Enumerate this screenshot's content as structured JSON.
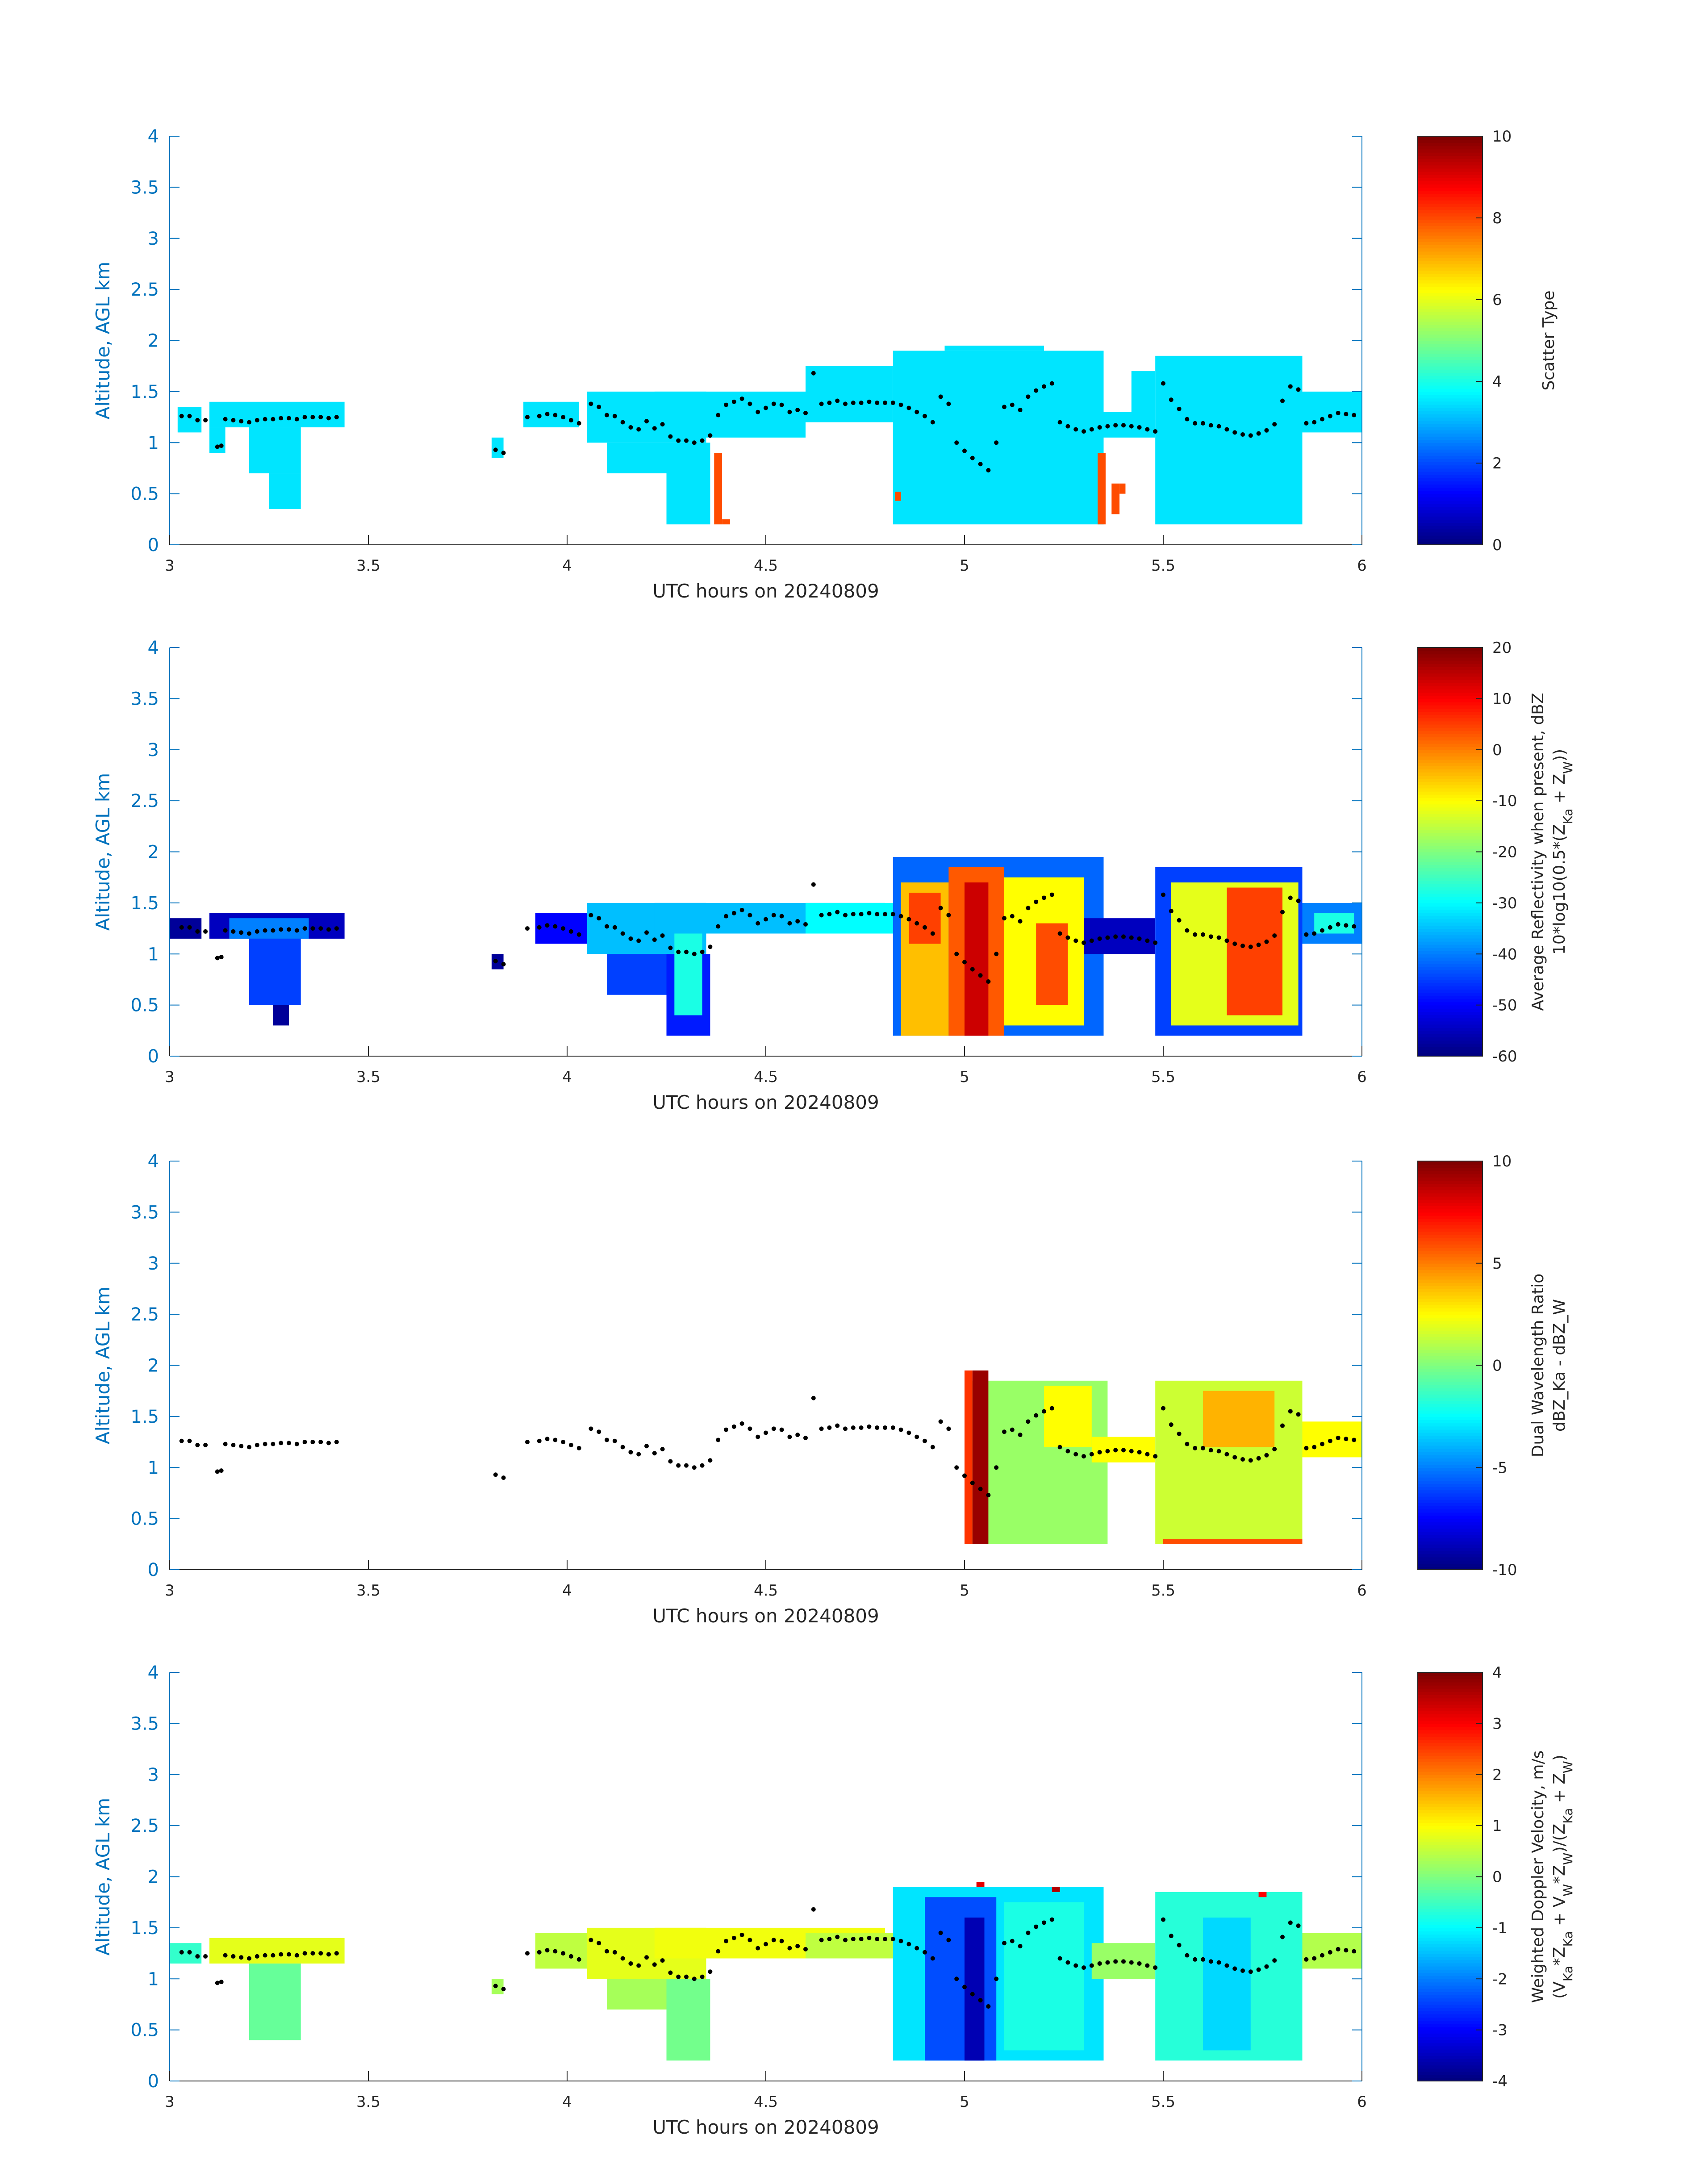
{
  "chart_data": [
    {
      "type": "heatmap",
      "title": "",
      "xlabel": "UTC hours on 20240809",
      "ylabel": "Altitude, AGL km",
      "xlim": [
        3,
        6
      ],
      "ylim": [
        0,
        4
      ],
      "xticks": [
        "3",
        "3.5",
        "4",
        "4.5",
        "5",
        "5.5",
        "6"
      ],
      "yticks": [
        "0",
        "0.5",
        "1",
        "1.5",
        "2",
        "2.5",
        "3",
        "3.5",
        "4"
      ],
      "colorbar": {
        "label_lines": [
          "Scatter Type"
        ],
        "range": [
          0,
          10
        ],
        "ticks": [
          "0",
          "2",
          "4",
          "6",
          "8",
          "10"
        ],
        "colormap": "jet"
      },
      "cells": [
        {
          "x0": 3.02,
          "x1": 3.08,
          "y0": 1.1,
          "y1": 1.35,
          "v": 3.5
        },
        {
          "x0": 3.1,
          "x1": 3.44,
          "y0": 1.15,
          "y1": 1.4,
          "v": 3.5
        },
        {
          "x0": 3.1,
          "x1": 3.14,
          "y0": 0.9,
          "y1": 1.15,
          "v": 3.5
        },
        {
          "x0": 3.2,
          "x1": 3.33,
          "y0": 0.7,
          "y1": 1.15,
          "v": 3.5
        },
        {
          "x0": 3.25,
          "x1": 3.33,
          "y0": 0.35,
          "y1": 0.7,
          "v": 3.5
        },
        {
          "x0": 3.81,
          "x1": 3.84,
          "y0": 0.85,
          "y1": 1.05,
          "v": 3.5
        },
        {
          "x0": 3.89,
          "x1": 4.03,
          "y0": 1.15,
          "y1": 1.4,
          "v": 3.5
        },
        {
          "x0": 4.05,
          "x1": 4.35,
          "y0": 1.0,
          "y1": 1.5,
          "v": 3.5
        },
        {
          "x0": 4.1,
          "x1": 4.25,
          "y0": 0.7,
          "y1": 1.0,
          "v": 3.5
        },
        {
          "x0": 4.25,
          "x1": 4.36,
          "y0": 0.2,
          "y1": 1.0,
          "v": 3.5
        },
        {
          "x0": 4.22,
          "x1": 4.8,
          "y0": 1.2,
          "y1": 1.5,
          "v": 3.5
        },
        {
          "x0": 4.35,
          "x1": 4.6,
          "y0": 1.05,
          "y1": 1.2,
          "v": 3.5
        },
        {
          "x0": 4.6,
          "x1": 4.82,
          "y0": 1.2,
          "y1": 1.75,
          "v": 3.5
        },
        {
          "x0": 4.82,
          "x1": 5.35,
          "y0": 0.2,
          "y1": 1.9,
          "v": 3.5
        },
        {
          "x0": 4.95,
          "x1": 5.2,
          "y0": 1.9,
          "y1": 1.95,
          "v": 3.5
        },
        {
          "x0": 5.35,
          "x1": 5.48,
          "y0": 1.05,
          "y1": 1.3,
          "v": 3.5
        },
        {
          "x0": 5.42,
          "x1": 5.48,
          "y0": 1.3,
          "y1": 1.7,
          "v": 3.5
        },
        {
          "x0": 5.48,
          "x1": 5.85,
          "y0": 0.2,
          "y1": 1.85,
          "v": 3.5
        },
        {
          "x0": 5.85,
          "x1": 6.0,
          "y0": 1.1,
          "y1": 1.5,
          "v": 3.5
        },
        {
          "x0": 4.37,
          "x1": 4.39,
          "y0": 0.2,
          "y1": 0.9,
          "v": 8.0
        },
        {
          "x0": 4.39,
          "x1": 4.41,
          "y0": 0.2,
          "y1": 0.25,
          "v": 8.0
        },
        {
          "x0": 4.825,
          "x1": 4.84,
          "y0": 0.43,
          "y1": 0.52,
          "v": 8.0
        },
        {
          "x0": 5.335,
          "x1": 5.355,
          "y0": 0.2,
          "y1": 0.9,
          "v": 8.0
        },
        {
          "x0": 5.37,
          "x1": 5.39,
          "y0": 0.3,
          "y1": 0.6,
          "v": 8.0
        },
        {
          "x0": 5.39,
          "x1": 5.405,
          "y0": 0.5,
          "y1": 0.6,
          "v": 8.0
        }
      ]
    },
    {
      "type": "heatmap",
      "title": "",
      "xlabel": "UTC hours on 20240809",
      "ylabel": "Altitude, AGL km",
      "xlim": [
        3,
        6
      ],
      "ylim": [
        0,
        4
      ],
      "xticks": [
        "3",
        "3.5",
        "4",
        "4.5",
        "5",
        "5.5",
        "6"
      ],
      "yticks": [
        "0",
        "0.5",
        "1",
        "1.5",
        "2",
        "2.5",
        "3",
        "3.5",
        "4"
      ],
      "colorbar": {
        "label_lines": [
          "Average Reflectivity when present, dBZ",
          "10*log10(0.5*(Z_Ka + Z_W))"
        ],
        "range": [
          -60,
          20
        ],
        "ticks": [
          "-60",
          "-50",
          "-40",
          "-30",
          "-20",
          "-10",
          "0",
          "10",
          "20"
        ],
        "colormap": "jet"
      },
      "cells": [
        {
          "x0": 3.0,
          "x1": 3.08,
          "y0": 1.15,
          "y1": 1.35,
          "v": -58
        },
        {
          "x0": 3.1,
          "x1": 3.44,
          "y0": 1.15,
          "y1": 1.4,
          "v": -55
        },
        {
          "x0": 3.15,
          "x1": 3.35,
          "y0": 1.15,
          "y1": 1.35,
          "v": -40
        },
        {
          "x0": 3.2,
          "x1": 3.33,
          "y0": 0.5,
          "y1": 1.15,
          "v": -45
        },
        {
          "x0": 3.26,
          "x1": 3.3,
          "y0": 0.3,
          "y1": 0.5,
          "v": -58
        },
        {
          "x0": 3.81,
          "x1": 3.84,
          "y0": 0.85,
          "y1": 1.0,
          "v": -58
        },
        {
          "x0": 3.92,
          "x1": 4.05,
          "y0": 1.1,
          "y1": 1.4,
          "v": -50
        },
        {
          "x0": 4.05,
          "x1": 4.35,
          "y0": 1.0,
          "y1": 1.5,
          "v": -35
        },
        {
          "x0": 4.1,
          "x1": 4.25,
          "y0": 0.6,
          "y1": 1.0,
          "v": -45
        },
        {
          "x0": 4.25,
          "x1": 4.36,
          "y0": 0.2,
          "y1": 1.0,
          "v": -48
        },
        {
          "x0": 4.27,
          "x1": 4.34,
          "y0": 0.4,
          "y1": 1.2,
          "v": -28
        },
        {
          "x0": 4.22,
          "x1": 4.8,
          "y0": 1.2,
          "y1": 1.5,
          "v": -35
        },
        {
          "x0": 4.6,
          "x1": 4.82,
          "y0": 1.2,
          "y1": 1.5,
          "v": -30
        },
        {
          "x0": 4.82,
          "x1": 5.35,
          "y0": 0.2,
          "y1": 1.95,
          "v": -42
        },
        {
          "x0": 4.84,
          "x1": 4.96,
          "y0": 0.2,
          "y1": 1.7,
          "v": -5
        },
        {
          "x0": 4.86,
          "x1": 4.94,
          "y0": 1.1,
          "y1": 1.6,
          "v": 5
        },
        {
          "x0": 4.96,
          "x1": 5.1,
          "y0": 0.2,
          "y1": 1.85,
          "v": 3
        },
        {
          "x0": 5.0,
          "x1": 5.06,
          "y0": 0.2,
          "y1": 1.7,
          "v": 14
        },
        {
          "x0": 5.1,
          "x1": 5.3,
          "y0": 0.3,
          "y1": 1.75,
          "v": -10
        },
        {
          "x0": 5.18,
          "x1": 5.26,
          "y0": 0.5,
          "y1": 1.3,
          "v": 4
        },
        {
          "x0": 5.3,
          "x1": 5.48,
          "y0": 1.0,
          "y1": 1.35,
          "v": -55
        },
        {
          "x0": 5.48,
          "x1": 5.85,
          "y0": 0.2,
          "y1": 1.85,
          "v": -45
        },
        {
          "x0": 5.52,
          "x1": 5.84,
          "y0": 0.3,
          "y1": 1.7,
          "v": -12
        },
        {
          "x0": 5.66,
          "x1": 5.8,
          "y0": 0.4,
          "y1": 1.65,
          "v": 5
        },
        {
          "x0": 5.85,
          "x1": 6.0,
          "y0": 1.1,
          "y1": 1.5,
          "v": -40
        },
        {
          "x0": 5.88,
          "x1": 5.98,
          "y0": 1.2,
          "y1": 1.4,
          "v": -28
        }
      ]
    },
    {
      "type": "heatmap",
      "title": "",
      "xlabel": "UTC hours on 20240809",
      "ylabel": "Altitude, AGL km",
      "xlim": [
        3,
        6
      ],
      "ylim": [
        0,
        4
      ],
      "xticks": [
        "3",
        "3.5",
        "4",
        "4.5",
        "5",
        "5.5",
        "6"
      ],
      "yticks": [
        "0",
        "0.5",
        "1",
        "1.5",
        "2",
        "2.5",
        "3",
        "3.5",
        "4"
      ],
      "colorbar": {
        "label_lines": [
          "Dual Wavelength Ratio",
          "dBZ_Ka - dBZ_W"
        ],
        "range": [
          -10,
          10
        ],
        "ticks": [
          "-10",
          "-5",
          "0",
          "5",
          "10"
        ],
        "colormap": "jet"
      },
      "cells": [
        {
          "x0": 5.0,
          "x1": 5.36,
          "y0": 0.25,
          "y1": 1.85,
          "v": 0.5
        },
        {
          "x0": 5.0,
          "x1": 5.02,
          "y0": 0.25,
          "y1": 1.95,
          "v": 6.5
        },
        {
          "x0": 5.02,
          "x1": 5.06,
          "y0": 0.25,
          "y1": 1.95,
          "v": 9.5
        },
        {
          "x0": 5.2,
          "x1": 5.32,
          "y0": 1.2,
          "y1": 1.8,
          "v": 2.5
        },
        {
          "x0": 5.32,
          "x1": 5.48,
          "y0": 1.05,
          "y1": 1.3,
          "v": 2.5
        },
        {
          "x0": 5.48,
          "x1": 5.85,
          "y0": 0.25,
          "y1": 1.85,
          "v": 1.5
        },
        {
          "x0": 5.6,
          "x1": 5.78,
          "y0": 1.2,
          "y1": 1.75,
          "v": 4.0
        },
        {
          "x0": 5.5,
          "x1": 5.85,
          "y0": 0.25,
          "y1": 0.3,
          "v": 6.0
        },
        {
          "x0": 5.85,
          "x1": 6.0,
          "y0": 1.1,
          "y1": 1.45,
          "v": 2.5
        }
      ]
    },
    {
      "type": "heatmap",
      "title": "",
      "xlabel": "UTC hours on 20240809",
      "ylabel": "Altitude, AGL km",
      "xlim": [
        3,
        6
      ],
      "ylim": [
        0,
        4
      ],
      "xticks": [
        "3",
        "3.5",
        "4",
        "4.5",
        "5",
        "5.5",
        "6"
      ],
      "yticks": [
        "0",
        "0.5",
        "1",
        "1.5",
        "2",
        "2.5",
        "3",
        "3.5",
        "4"
      ],
      "colorbar": {
        "label_lines": [
          "Weighted Doppler Velocity, m/s",
          "(V_Ka*Z_Ka + V_W*Z_W)/(Z_Ka + Z_W)"
        ],
        "range": [
          -4,
          4
        ],
        "ticks": [
          "-4",
          "-3",
          "-2",
          "-1",
          "0",
          "1",
          "2",
          "3",
          "4"
        ],
        "colormap": "jet"
      },
      "cells": [
        {
          "x0": 3.0,
          "x1": 3.08,
          "y0": 1.15,
          "y1": 1.35,
          "v": -0.6
        },
        {
          "x0": 3.1,
          "x1": 3.44,
          "y0": 1.15,
          "y1": 1.4,
          "v": 0.8
        },
        {
          "x0": 3.2,
          "x1": 3.33,
          "y0": 0.4,
          "y1": 1.15,
          "v": -0.2
        },
        {
          "x0": 3.81,
          "x1": 3.84,
          "y0": 0.85,
          "y1": 1.0,
          "v": 0.3
        },
        {
          "x0": 3.92,
          "x1": 4.05,
          "y0": 1.1,
          "y1": 1.45,
          "v": 0.5
        },
        {
          "x0": 4.05,
          "x1": 4.35,
          "y0": 1.0,
          "y1": 1.5,
          "v": 0.8
        },
        {
          "x0": 4.1,
          "x1": 4.25,
          "y0": 0.7,
          "y1": 1.0,
          "v": 0.3
        },
        {
          "x0": 4.25,
          "x1": 4.36,
          "y0": 0.2,
          "y1": 1.0,
          "v": -0.1
        },
        {
          "x0": 4.22,
          "x1": 4.8,
          "y0": 1.2,
          "y1": 1.5,
          "v": 0.9
        },
        {
          "x0": 4.6,
          "x1": 4.82,
          "y0": 1.2,
          "y1": 1.45,
          "v": 0.5
        },
        {
          "x0": 4.82,
          "x1": 5.35,
          "y0": 0.2,
          "y1": 1.9,
          "v": -1.2
        },
        {
          "x0": 4.9,
          "x1": 5.08,
          "y0": 0.2,
          "y1": 1.8,
          "v": -2.4
        },
        {
          "x0": 5.0,
          "x1": 5.05,
          "y0": 0.2,
          "y1": 1.6,
          "v": -3.6
        },
        {
          "x0": 5.1,
          "x1": 5.3,
          "y0": 0.3,
          "y1": 1.75,
          "v": -0.8
        },
        {
          "x0": 5.32,
          "x1": 5.48,
          "y0": 1.0,
          "y1": 1.35,
          "v": 0.2
        },
        {
          "x0": 5.48,
          "x1": 5.85,
          "y0": 0.2,
          "y1": 1.85,
          "v": -0.7
        },
        {
          "x0": 5.6,
          "x1": 5.72,
          "y0": 0.3,
          "y1": 1.6,
          "v": -1.3
        },
        {
          "x0": 5.85,
          "x1": 6.0,
          "y0": 1.1,
          "y1": 1.45,
          "v": 0.4
        },
        {
          "x0": 5.03,
          "x1": 5.05,
          "y0": 1.9,
          "y1": 1.95,
          "v": 3.2
        },
        {
          "x0": 5.22,
          "x1": 5.24,
          "y0": 1.85,
          "y1": 1.9,
          "v": 3.6
        },
        {
          "x0": 5.74,
          "x1": 5.76,
          "y0": 1.8,
          "y1": 1.85,
          "v": 3.0
        }
      ]
    }
  ],
  "cloud_base_points": {
    "x": [
      3.03,
      3.05,
      3.07,
      3.09,
      3.12,
      3.13,
      3.14,
      3.16,
      3.18,
      3.2,
      3.22,
      3.24,
      3.26,
      3.28,
      3.3,
      3.32,
      3.34,
      3.36,
      3.38,
      3.4,
      3.42,
      3.82,
      3.84,
      3.9,
      3.93,
      3.95,
      3.97,
      3.99,
      4.01,
      4.03,
      4.06,
      4.08,
      4.1,
      4.12,
      4.14,
      4.16,
      4.18,
      4.2,
      4.22,
      4.24,
      4.26,
      4.28,
      4.3,
      4.32,
      4.34,
      4.36,
      4.38,
      4.4,
      4.42,
      4.44,
      4.46,
      4.48,
      4.5,
      4.52,
      4.54,
      4.56,
      4.58,
      4.6,
      4.62,
      4.64,
      4.66,
      4.68,
      4.7,
      4.72,
      4.74,
      4.76,
      4.78,
      4.8,
      4.82,
      4.84,
      4.86,
      4.88,
      4.9,
      4.92,
      4.94,
      4.96,
      4.98,
      5.0,
      5.02,
      5.04,
      5.06,
      5.08,
      5.1,
      5.12,
      5.14,
      5.16,
      5.18,
      5.2,
      5.22,
      5.24,
      5.26,
      5.28,
      5.3,
      5.32,
      5.34,
      5.36,
      5.38,
      5.4,
      5.42,
      5.44,
      5.46,
      5.48,
      5.5,
      5.52,
      5.54,
      5.56,
      5.58,
      5.6,
      5.62,
      5.64,
      5.66,
      5.68,
      5.7,
      5.72,
      5.74,
      5.76,
      5.78,
      5.8,
      5.82,
      5.84,
      5.86,
      5.88,
      5.9,
      5.92,
      5.94,
      5.96,
      5.98
    ],
    "y": [
      1.26,
      1.26,
      1.22,
      1.22,
      0.96,
      0.97,
      1.23,
      1.22,
      1.21,
      1.2,
      1.22,
      1.23,
      1.23,
      1.24,
      1.24,
      1.23,
      1.25,
      1.25,
      1.25,
      1.24,
      1.25,
      0.93,
      0.9,
      1.25,
      1.26,
      1.28,
      1.27,
      1.25,
      1.22,
      1.19,
      1.38,
      1.35,
      1.27,
      1.26,
      1.2,
      1.15,
      1.13,
      1.21,
      1.14,
      1.18,
      1.06,
      1.02,
      1.02,
      1.0,
      1.02,
      1.07,
      1.27,
      1.37,
      1.4,
      1.43,
      1.38,
      1.3,
      1.34,
      1.38,
      1.37,
      1.3,
      1.32,
      1.29,
      1.68,
      1.38,
      1.39,
      1.41,
      1.38,
      1.39,
      1.39,
      1.4,
      1.39,
      1.39,
      1.39,
      1.37,
      1.34,
      1.3,
      1.26,
      1.2,
      1.45,
      1.38,
      1.0,
      0.92,
      0.85,
      0.79,
      0.73,
      1.0,
      1.35,
      1.37,
      1.32,
      1.45,
      1.51,
      1.55,
      1.58,
      1.2,
      1.16,
      1.13,
      1.11,
      1.13,
      1.15,
      1.16,
      1.17,
      1.17,
      1.16,
      1.15,
      1.13,
      1.11,
      1.58,
      1.42,
      1.33,
      1.23,
      1.19,
      1.19,
      1.17,
      1.16,
      1.13,
      1.1,
      1.08,
      1.07,
      1.09,
      1.12,
      1.18,
      1.41,
      1.55,
      1.52,
      1.19,
      1.2,
      1.23,
      1.26,
      1.29,
      1.28,
      1.27
    ]
  }
}
